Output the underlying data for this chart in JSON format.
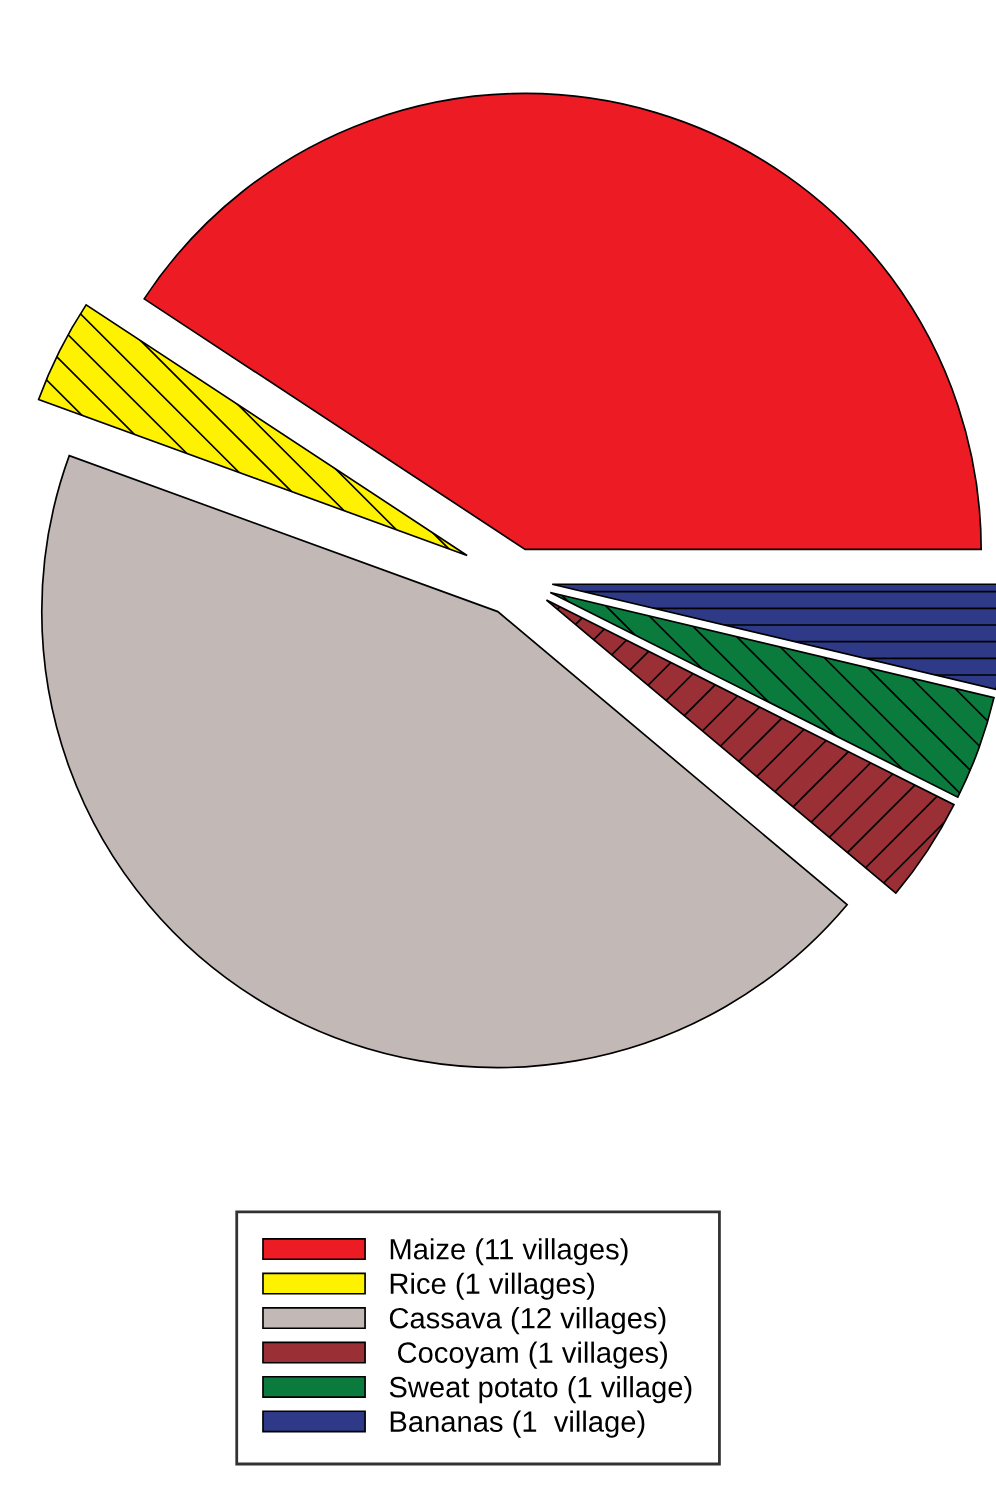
{
  "chart_data": {
    "type": "pie",
    "categories": [
      "Maize (11 villages)",
      "Rice (1 villages)",
      "Cassava (12 villages)",
      " Cocoyam (1 villages)",
      "Sweat potato (1 village)",
      "Bananas (1  village)"
    ],
    "values": [
      11,
      1,
      12,
      1,
      1,
      1
    ],
    "colors": [
      "#ed1c24",
      "#fff200",
      "#c2b9b6",
      "#9b2f36",
      "#0a7a3d",
      "#2e3a87"
    ],
    "legend": "bottom"
  }
}
